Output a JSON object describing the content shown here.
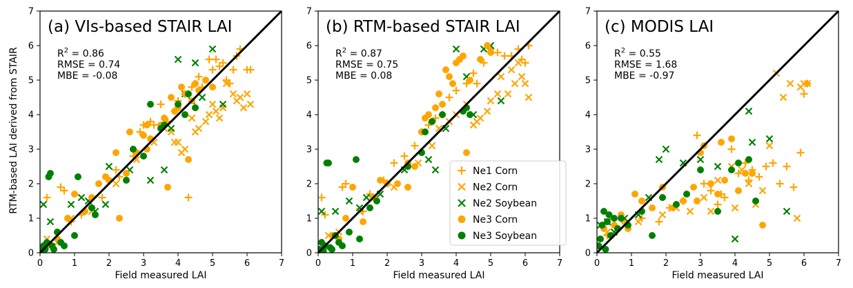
{
  "figure": {
    "ylabel": "RTM-based LAI derived from STAIR"
  },
  "legend": {
    "entries": [
      {
        "label": "Ne1 Corn",
        "marker": "plus",
        "color": "#FFA500"
      },
      {
        "label": "Ne2 Corn",
        "marker": "x",
        "color": "#FFA500"
      },
      {
        "label": "Ne2 Soybean",
        "marker": "x",
        "color": "#008000"
      },
      {
        "label": "Ne3 Corn",
        "marker": "circle",
        "color": "#FFA500"
      },
      {
        "label": "Ne3 Soybean",
        "marker": "circle",
        "color": "#008000"
      }
    ]
  },
  "colors": {
    "corn": "#FFA500",
    "soybean": "#008000",
    "line": "#000000"
  },
  "chart_data": [
    {
      "type": "scatter",
      "title": "(a) VIs-based STAIR LAI",
      "xlabel": "Field measured LAI",
      "ylabel": "RTM-based LAI derived from STAIR",
      "xlim": [
        0,
        7
      ],
      "ylim": [
        0,
        7
      ],
      "ticks": [
        "0",
        "1",
        "2",
        "3",
        "4",
        "5",
        "6",
        "7"
      ],
      "stats": {
        "r2": "R² = 0.86",
        "rmse": "RMSE = 0.74",
        "mbe": "MBE = -0.08"
      },
      "reference_line": "1:1",
      "series": [
        {
          "name": "Ne1 Corn",
          "marker": "plus",
          "color": "#FFA500",
          "x": [
            0.1,
            0.2,
            0.6,
            0.7,
            0.9,
            1.2,
            1.5,
            1.8,
            2.3,
            2.7,
            3.0,
            3.2,
            3.5,
            3.7,
            3.9,
            4.0,
            4.3,
            4.4,
            4.6,
            4.7,
            4.9,
            5.0,
            5.1,
            5.2,
            5.3,
            5.4,
            5.5,
            5.6,
            5.7,
            5.8,
            6.0,
            6.1,
            4.2,
            3.3,
            2.9,
            2.2
          ],
          "y": [
            0.2,
            1.6,
            1.9,
            1.8,
            0.9,
            1.1,
            1.3,
            1.6,
            2.2,
            2.8,
            3.7,
            3.8,
            4.3,
            3.8,
            4.1,
            4.4,
            1.6,
            4.8,
            5.1,
            4.8,
            5.6,
            5.3,
            5.6,
            5.4,
            5.5,
            5.0,
            4.9,
            5.3,
            5.7,
            5.9,
            5.3,
            5.3,
            4.6,
            3.7,
            3.5,
            2.4
          ]
        },
        {
          "name": "Ne2 Corn",
          "marker": "x",
          "color": "#FFA500",
          "x": [
            0.2,
            0.5,
            0.9,
            1.5,
            2.2,
            2.8,
            3.3,
            3.6,
            3.8,
            4.0,
            4.2,
            4.4,
            4.5,
            4.6,
            4.8,
            4.9,
            5.0,
            5.1,
            5.2,
            5.3,
            5.4,
            5.6,
            5.7,
            5.8,
            5.9,
            6.0,
            6.1,
            4.1,
            3.9
          ],
          "y": [
            0.4,
            0.3,
            1.0,
            1.2,
            2.0,
            2.7,
            3.2,
            3.6,
            3.5,
            3.2,
            3.0,
            3.9,
            3.5,
            3.6,
            3.8,
            4.0,
            4.3,
            4.1,
            3.9,
            4.2,
            4.9,
            4.6,
            4.4,
            4.5,
            4.2,
            4.6,
            4.3,
            2.9,
            3.2
          ]
        },
        {
          "name": "Ne2 Soybean",
          "marker": "x",
          "color": "#008000",
          "x": [
            0.1,
            0.3,
            0.5,
            0.9,
            1.2,
            1.4,
            1.6,
            1.9,
            2.0,
            2.6,
            3.2,
            3.6,
            3.8,
            4.0,
            4.2,
            4.4,
            4.5,
            4.7,
            5.0,
            5.3
          ],
          "y": [
            1.4,
            0.9,
            0.5,
            1.4,
            1.6,
            1.5,
            1.2,
            1.4,
            2.5,
            2.4,
            2.1,
            2.4,
            3.6,
            5.6,
            4.6,
            4.4,
            5.5,
            4.5,
            5.9,
            4.3
          ]
        },
        {
          "name": "Ne3 Corn",
          "marker": "circle",
          "color": "#FFA500",
          "x": [
            0.2,
            0.5,
            0.8,
            1.0,
            1.3,
            1.5,
            1.7,
            2.0,
            2.3,
            2.5,
            2.6,
            2.8,
            3.0,
            3.1,
            3.2,
            3.5,
            3.7,
            3.8,
            3.9,
            4.0,
            4.1,
            4.2,
            4.3,
            4.4,
            4.5,
            4.6,
            4.8,
            5.0,
            3.6,
            3.1,
            2.2,
            1.9
          ],
          "y": [
            0.2,
            0.4,
            1.0,
            1.7,
            1.2,
            1.6,
            2.0,
            2.1,
            1.0,
            2.3,
            3.5,
            2.9,
            3.4,
            3.0,
            3.3,
            3.7,
            1.9,
            4.5,
            4.1,
            4.2,
            4.8,
            4.6,
            2.7,
            4.4,
            4.9,
            4.7,
            5.0,
            4.8,
            3.9,
            3.7,
            2.9,
            2.2
          ]
        },
        {
          "name": "Ne3 Soybean",
          "marker": "circle",
          "color": "#008000",
          "x": [
            0.05,
            0.1,
            0.15,
            0.2,
            0.25,
            0.3,
            0.35,
            0.4,
            0.5,
            0.6,
            0.7,
            1.0,
            1.1,
            1.5,
            1.6,
            2.5,
            2.7,
            3.0,
            3.2,
            3.5,
            3.6,
            4.0,
            4.2,
            4.3,
            4.5
          ],
          "y": [
            0.05,
            0.2,
            0.1,
            0.3,
            2.2,
            2.3,
            0.2,
            0.1,
            0.6,
            0.3,
            0.2,
            0.5,
            2.2,
            1.3,
            1.1,
            2.1,
            3.0,
            2.8,
            4.3,
            3.6,
            3.7,
            4.3,
            4.0,
            4.6,
            4.2
          ]
        }
      ]
    },
    {
      "type": "scatter",
      "title": "(b) RTM-based STAIR LAI",
      "xlabel": "Field measured LAI",
      "ylabel": "",
      "xlim": [
        0,
        7
      ],
      "ylim": [
        0,
        7
      ],
      "ticks": [
        "0",
        "1",
        "2",
        "3",
        "4",
        "5",
        "6",
        "7"
      ],
      "stats": {
        "r2": "R² = 0.87",
        "rmse": "RMSE = 0.75",
        "mbe": "MBE = 0.08"
      },
      "reference_line": "1:1",
      "series": [
        {
          "name": "Ne1 Corn",
          "marker": "plus",
          "color": "#FFA500",
          "x": [
            0.1,
            0.2,
            0.7,
            0.8,
            1.3,
            1.5,
            1.9,
            2.2,
            2.5,
            2.8,
            3.0,
            3.4,
            3.6,
            3.8,
            4.0,
            4.3,
            4.5,
            4.8,
            5.0,
            5.2,
            5.4,
            5.6,
            5.8,
            5.9,
            6.0,
            6.1,
            4.6,
            3.2
          ],
          "y": [
            1.6,
            1.1,
            1.9,
            2.0,
            1.2,
            1.7,
            2.1,
            2.6,
            2.8,
            3.1,
            3.5,
            3.9,
            4.0,
            4.5,
            4.7,
            4.9,
            5.2,
            5.5,
            5.9,
            5.8,
            5.7,
            5.7,
            5.9,
            5.6,
            5.5,
            6.0,
            4.9,
            3.7
          ]
        },
        {
          "name": "Ne2 Corn",
          "marker": "x",
          "color": "#FFA500",
          "x": [
            0.3,
            0.6,
            1.2,
            2.2,
            2.9,
            3.5,
            3.8,
            4.0,
            4.3,
            4.5,
            4.7,
            4.9,
            5.0,
            5.2,
            5.3,
            5.5,
            5.6,
            5.7,
            5.8,
            5.9,
            6.0,
            6.1,
            4.6,
            3.3
          ],
          "y": [
            0.5,
            0.6,
            1.2,
            1.9,
            2.6,
            3.6,
            3.8,
            4.0,
            4.3,
            3.7,
            3.9,
            4.1,
            4.4,
            4.6,
            5.1,
            4.6,
            5.3,
            4.9,
            5.5,
            5.1,
            4.9,
            4.5,
            3.8,
            3.1
          ]
        },
        {
          "name": "Ne2 Soybean",
          "marker": "x",
          "color": "#008000",
          "x": [
            0.1,
            0.5,
            0.9,
            1.2,
            1.4,
            1.8,
            2.5,
            3.2,
            3.4,
            3.7,
            4.0,
            4.3,
            4.5,
            4.8,
            5.0,
            5.3
          ],
          "y": [
            1.2,
            1.2,
            1.5,
            1.3,
            1.6,
            1.7,
            2.4,
            2.7,
            2.4,
            3.6,
            5.9,
            5.1,
            4.0,
            5.9,
            6.0,
            4.4
          ]
        },
        {
          "name": "Ne3 Corn",
          "marker": "circle",
          "color": "#FFA500",
          "x": [
            0.2,
            0.4,
            0.6,
            0.8,
            1.0,
            1.3,
            1.6,
            1.8,
            2.0,
            2.3,
            2.6,
            2.8,
            3.0,
            3.1,
            3.2,
            3.4,
            3.6,
            3.7,
            3.8,
            3.9,
            4.0,
            4.1,
            4.2,
            4.3,
            4.4,
            4.7,
            4.9,
            5.0,
            3.5,
            2.6
          ],
          "y": [
            0.2,
            0.5,
            0.4,
            1.0,
            1.9,
            0.9,
            1.6,
            2.1,
            2.0,
            2.0,
            2.6,
            2.5,
            3.5,
            3.9,
            4.0,
            4.2,
            4.3,
            5.3,
            5.1,
            4.9,
            5.5,
            5.6,
            5.7,
            2.9,
            5.0,
            5.6,
            6.0,
            5.8,
            4.6,
            1.9
          ]
        },
        {
          "name": "Ne3 Soybean",
          "marker": "circle",
          "color": "#008000",
          "x": [
            0.05,
            0.1,
            0.15,
            0.2,
            0.25,
            0.3,
            0.35,
            0.4,
            0.5,
            0.6,
            0.7,
            0.9,
            1.1,
            1.2,
            1.5,
            1.7,
            2.6,
            3.0,
            3.1,
            3.3,
            3.6,
            4.2,
            4.3,
            4.4
          ],
          "y": [
            0.1,
            0.3,
            0.05,
            0.2,
            2.6,
            2.6,
            0.15,
            0.1,
            0.5,
            0.3,
            0.2,
            0.6,
            2.7,
            0.4,
            1.3,
            1.5,
            2.5,
            2.9,
            3.5,
            3.8,
            4.0,
            4.1,
            4.2,
            4.0
          ]
        }
      ]
    },
    {
      "type": "scatter",
      "title": "(c) MODIS LAI",
      "xlabel": "Field measured LAI",
      "ylabel": "",
      "xlim": [
        0,
        7
      ],
      "ylim": [
        0,
        7
      ],
      "ticks": [
        "0",
        "1",
        "2",
        "3",
        "4",
        "5",
        "6",
        "7"
      ],
      "stats": {
        "r2": "R² = 0.55",
        "rmse": "RMSE = 1.68",
        "mbe": "MBE = -0.97"
      },
      "reference_line": "1:1",
      "series": [
        {
          "name": "Ne1 Corn",
          "marker": "plus",
          "color": "#FFA500",
          "x": [
            0.3,
            0.5,
            0.8,
            1.3,
            1.8,
            2.1,
            2.5,
            2.9,
            3.1,
            3.3,
            3.5,
            3.7,
            3.9,
            4.1,
            4.3,
            4.5,
            4.7,
            4.9,
            5.1,
            5.3,
            5.5,
            5.7,
            5.9,
            6.0,
            6.1,
            4.4,
            3.6
          ],
          "y": [
            0.5,
            0.8,
            0.9,
            1.0,
            0.9,
            1.3,
            1.5,
            3.4,
            2.0,
            1.8,
            1.4,
            1.6,
            3.0,
            2.3,
            2.6,
            2.4,
            2.2,
            2.5,
            2.6,
            2.0,
            2.5,
            1.9,
            2.9,
            4.6,
            4.9,
            2.1,
            1.7
          ]
        },
        {
          "name": "Ne2 Corn",
          "marker": "x",
          "color": "#FFA500",
          "x": [
            0.3,
            0.8,
            1.2,
            1.9,
            2.3,
            2.7,
            3.1,
            3.5,
            3.9,
            4.2,
            4.4,
            4.6,
            4.8,
            5.0,
            5.2,
            5.4,
            5.6,
            5.8,
            5.9,
            6.0,
            6.1,
            4.0,
            3.3
          ],
          "y": [
            0.6,
            0.8,
            0.9,
            1.1,
            1.3,
            1.2,
            1.6,
            2.1,
            2.5,
            2.4,
            2.0,
            1.4,
            1.8,
            3.1,
            5.2,
            4.5,
            4.9,
            1.0,
            4.8,
            4.9,
            4.9,
            1.3,
            1.2
          ]
        },
        {
          "name": "Ne2 Soybean",
          "marker": "x",
          "color": "#008000",
          "x": [
            0.1,
            0.3,
            0.5,
            0.8,
            1.2,
            1.5,
            1.8,
            2.0,
            2.5,
            3.0,
            3.5,
            4.0,
            4.4,
            4.5,
            5.0,
            5.5
          ],
          "y": [
            0.8,
            0.9,
            0.6,
            1.0,
            1.1,
            1.6,
            2.7,
            3.0,
            2.6,
            2.7,
            2.5,
            0.4,
            4.1,
            3.2,
            3.3,
            1.2
          ]
        },
        {
          "name": "Ne3 Corn",
          "marker": "circle",
          "color": "#FFA500",
          "x": [
            0.2,
            0.5,
            0.7,
            0.9,
            1.1,
            1.3,
            1.6,
            1.9,
            2.2,
            2.5,
            2.8,
            3.0,
            3.1,
            3.3,
            3.5,
            3.7,
            3.9,
            4.1,
            4.3,
            4.5,
            4.8,
            3.6,
            2.9
          ],
          "y": [
            0.7,
            0.8,
            1.1,
            0.7,
            1.7,
            1.5,
            1.3,
            1.9,
            1.3,
            1.5,
            1.9,
            2.9,
            3.1,
            2.0,
            1.7,
            2.1,
            3.3,
            1.8,
            2.3,
            2.3,
            0.8,
            3.2,
            1.5
          ]
        },
        {
          "name": "Ne3 Soybean",
          "marker": "circle",
          "color": "#008000",
          "x": [
            0.05,
            0.1,
            0.15,
            0.2,
            0.25,
            0.3,
            0.35,
            0.4,
            0.5,
            0.6,
            0.7,
            0.9,
            1.3,
            1.6,
            1.9,
            2.3,
            2.6,
            3.0,
            3.5,
            3.9,
            4.1,
            4.4,
            4.6
          ],
          "y": [
            0.2,
            0.4,
            0.8,
            1.2,
            0.1,
            0.9,
            1.1,
            0.5,
            1.0,
            0.7,
            1.0,
            0.8,
            1.2,
            0.5,
            1.6,
            1.4,
            1.7,
            2.4,
            1.2,
            2.4,
            2.6,
            2.7,
            1.5
          ]
        }
      ]
    }
  ]
}
